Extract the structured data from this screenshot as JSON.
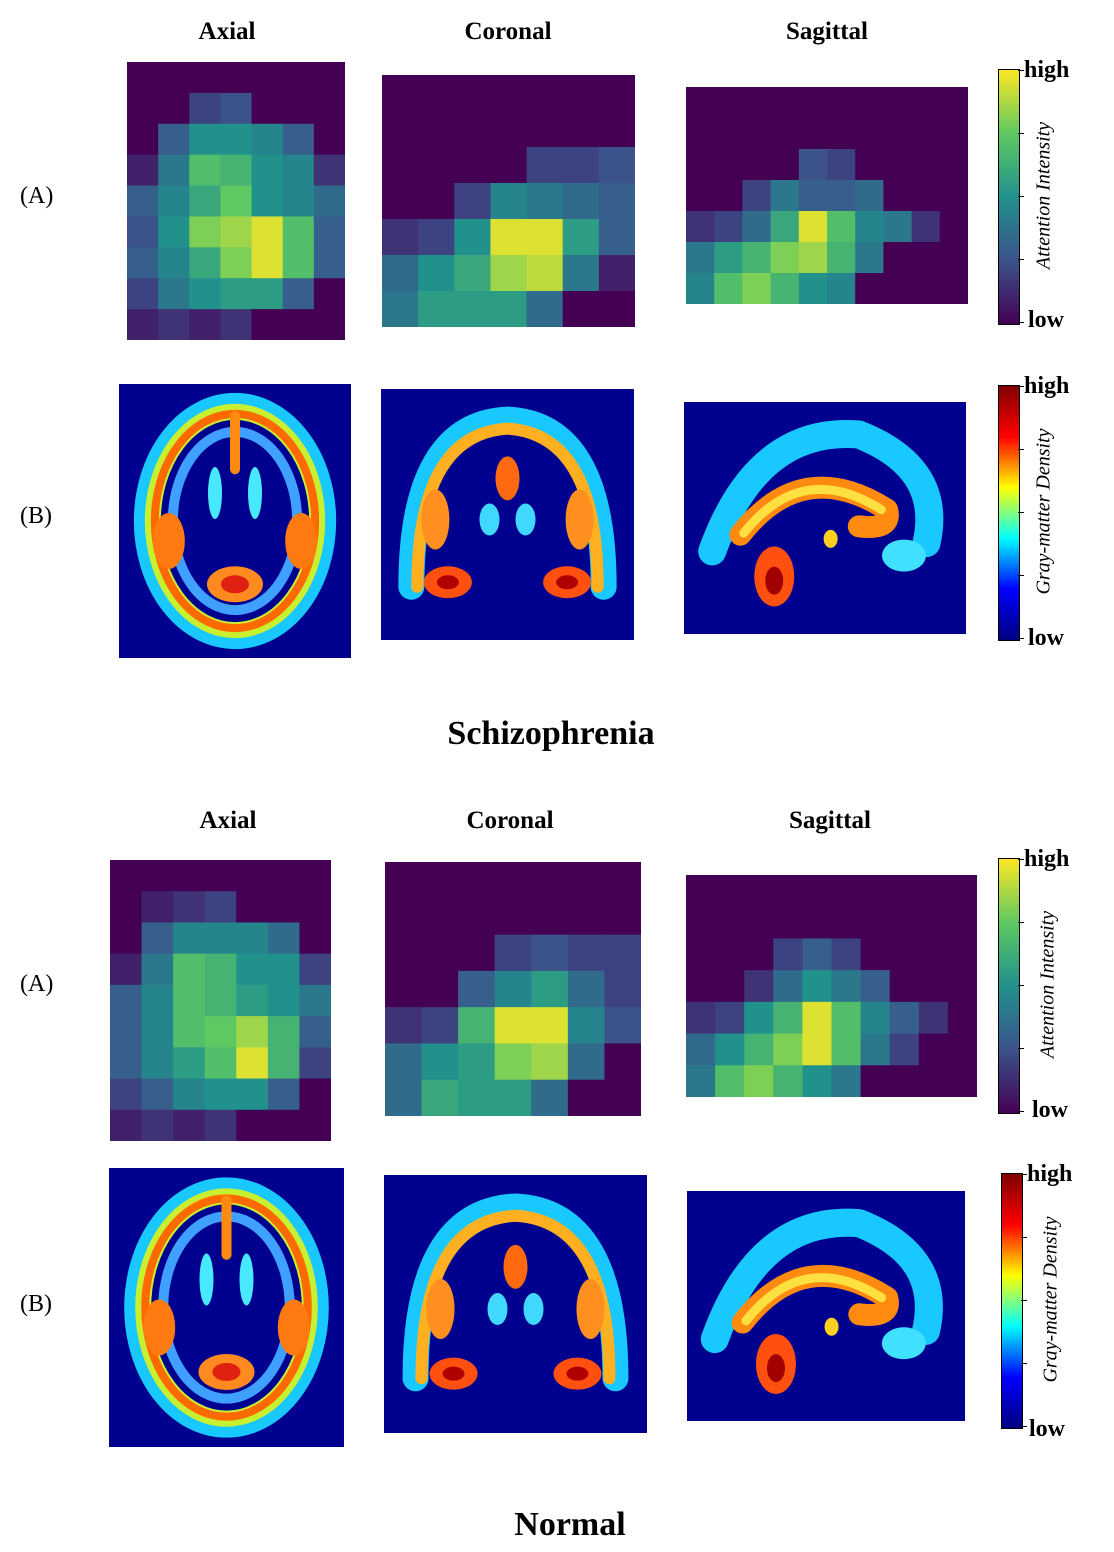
{
  "panels": [
    {
      "group": "Schizophrenia",
      "columns": [
        "Axial",
        "Coronal",
        "Sagittal"
      ],
      "rows": [
        {
          "label": "(A)",
          "colorbar": {
            "high": "high",
            "low": "low",
            "title": "Attention Intensity"
          }
        },
        {
          "label": "(B)",
          "colorbar": {
            "high": "high",
            "low": "low",
            "title": "Gray-matter Density"
          }
        }
      ]
    },
    {
      "group": "Normal",
      "columns": [
        "Axial",
        "Coronal",
        "Sagittal"
      ],
      "rows": [
        {
          "label": "(A)",
          "colorbar": {
            "high": "high",
            "low": "low",
            "title": "Attention Intensity"
          }
        },
        {
          "label": "(B)",
          "colorbar": {
            "high": "high",
            "low": "low",
            "title": "Gray-matter Density"
          }
        }
      ]
    }
  ],
  "colors": {
    "viridis": [
      "#440154",
      "#3b528b",
      "#21918c",
      "#5ec962",
      "#fde725"
    ],
    "jet": [
      "#00007f",
      "#0000ff",
      "#00ffff",
      "#ffff00",
      "#ff0000",
      "#7f0000"
    ]
  }
}
